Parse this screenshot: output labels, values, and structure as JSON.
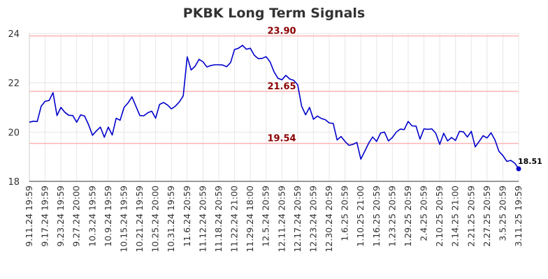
{
  "chart_data": {
    "type": "line",
    "title": "PKBK Long Term Signals",
    "xlabel": "",
    "ylabel": "",
    "ylim": [
      18,
      24
    ],
    "yticks": [
      18,
      20,
      22,
      24
    ],
    "grid": "vertical",
    "line_color": "#0000cc",
    "ref_line_color": "#ffb3b3",
    "x_tick_labels": [
      "9.11.24 19:59",
      "9.17.24 19:59",
      "9.23.24 19:59",
      "9.27.24 20:00",
      "10.3.24 19:59",
      "10.9.24 19:59",
      "10.15.24 19:59",
      "10.21.24 19:59",
      "10.25.24 20:00",
      "10.31.24 19:59",
      "11.6.24 20:59",
      "11.12.24 20:59",
      "11.18.24 20:59",
      "11.22.24 21:00",
      "11.29.24 18:00",
      "12.5.24 20:59",
      "12.11.24 20:59",
      "12.17.24 20:59",
      "12.23.24 20:59",
      "12.30.24 20:59",
      "1.6.25 20:59",
      "1.10.25 21:00",
      "1.16.25 20:59",
      "1.23.25 20:59",
      "1.29.25 20:59",
      "2.4.25 20:59",
      "2.10.25 20:59",
      "2.14.25 21:00",
      "2.21.25 20:59",
      "2.27.25 20:59",
      "3.5.25 20:59",
      "3.11.25 19:59"
    ],
    "reference_lines": [
      {
        "value": 23.9,
        "label": "23.90"
      },
      {
        "value": 21.65,
        "label": "21.65"
      },
      {
        "value": 19.54,
        "label": "19.54"
      }
    ],
    "last_value_label": "18.51",
    "series": [
      {
        "values": [
          20.4,
          20.44,
          20.43,
          21.05,
          21.25,
          21.28,
          21.6,
          20.67,
          21.0,
          20.8,
          20.68,
          20.67,
          20.4,
          20.7,
          20.65,
          20.3,
          19.87,
          20.05,
          20.2,
          19.79,
          20.2,
          19.88,
          20.56,
          20.48,
          21.0,
          21.18,
          21.43,
          21.05,
          20.67,
          20.66,
          20.78,
          20.85,
          20.56,
          21.12,
          21.2,
          21.1,
          20.94,
          21.05,
          21.22,
          21.47,
          23.05,
          22.52,
          22.67,
          22.95,
          22.85,
          22.64,
          22.7,
          22.73,
          22.73,
          22.72,
          22.65,
          22.82,
          23.35,
          23.4,
          23.52,
          23.36,
          23.4,
          23.12,
          22.98,
          22.99,
          23.06,
          22.85,
          22.45,
          22.18,
          22.12,
          22.3,
          22.15,
          22.1,
          21.92,
          21.05,
          20.7,
          21.0,
          20.52,
          20.65,
          20.55,
          20.5,
          20.37,
          20.35,
          19.68,
          19.82,
          19.62,
          19.46,
          19.5,
          19.58,
          18.9,
          19.22,
          19.55,
          19.8,
          19.62,
          19.96,
          20.0,
          19.64,
          19.78,
          20.0,
          20.12,
          20.1,
          20.43,
          20.25,
          20.24,
          19.71,
          20.13,
          20.11,
          20.13,
          19.95,
          19.5,
          19.95,
          19.64,
          19.78,
          19.66,
          20.03,
          20.01,
          19.8,
          20.03,
          19.4,
          19.62,
          19.85,
          19.76,
          19.97,
          19.68,
          19.22,
          19.05,
          18.81,
          18.85,
          18.74,
          18.51
        ]
      }
    ]
  }
}
